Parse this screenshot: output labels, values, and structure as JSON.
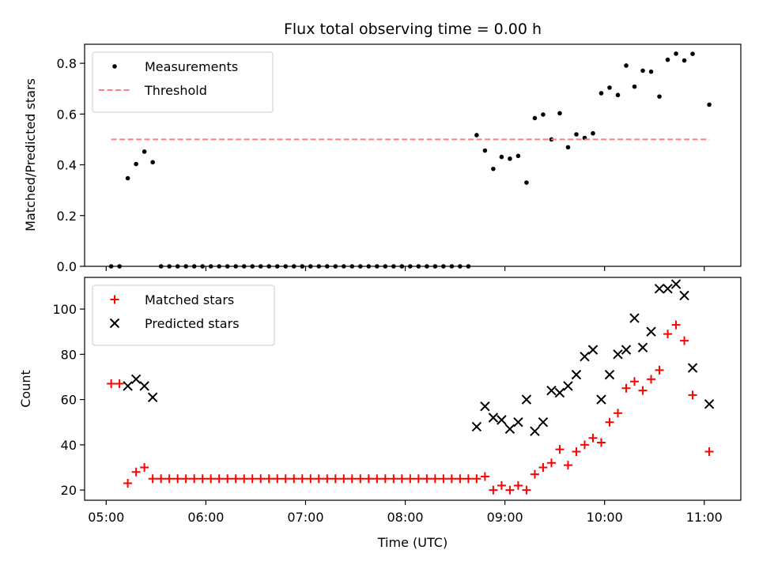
{
  "chart_data": [
    {
      "type": "scatter",
      "title": "Flux total observing time = 0.00 h",
      "xlabel": "",
      "ylabel": "Matched/Predicted stars",
      "xlim": [
        "04:47",
        "11:22"
      ],
      "ylim": [
        0,
        0.875
      ],
      "yticks": [
        0.0,
        0.2,
        0.4,
        0.6,
        0.8
      ],
      "xticks": [
        "05:00",
        "06:00",
        "07:00",
        "08:00",
        "09:00",
        "10:00",
        "11:00"
      ],
      "legend": {
        "position": "top-left"
      },
      "series": [
        {
          "name": "Measurements",
          "style": "dot",
          "color": "#000000",
          "points": [
            [
              "05:03",
              0.0
            ],
            [
              "05:08",
              0.0
            ],
            [
              "05:13",
              0.347
            ],
            [
              "05:18",
              0.403
            ],
            [
              "05:23",
              0.452
            ],
            [
              "05:28",
              0.41
            ],
            [
              "05:33",
              0.0
            ],
            [
              "05:38",
              0.0
            ],
            [
              "05:43",
              0.0
            ],
            [
              "05:48",
              0.0
            ],
            [
              "05:53",
              0.0
            ],
            [
              "05:58",
              0.0
            ],
            [
              "06:03",
              0.0
            ],
            [
              "06:08",
              0.0
            ],
            [
              "06:13",
              0.0
            ],
            [
              "06:18",
              0.0
            ],
            [
              "06:23",
              0.0
            ],
            [
              "06:28",
              0.0
            ],
            [
              "06:33",
              0.0
            ],
            [
              "06:38",
              0.0
            ],
            [
              "06:43",
              0.0
            ],
            [
              "06:48",
              0.0
            ],
            [
              "06:53",
              0.0
            ],
            [
              "06:58",
              0.0
            ],
            [
              "07:03",
              0.0
            ],
            [
              "07:08",
              0.0
            ],
            [
              "07:13",
              0.0
            ],
            [
              "07:18",
              0.0
            ],
            [
              "07:23",
              0.0
            ],
            [
              "07:28",
              0.0
            ],
            [
              "07:33",
              0.0
            ],
            [
              "07:38",
              0.0
            ],
            [
              "07:43",
              0.0
            ],
            [
              "07:48",
              0.0
            ],
            [
              "07:53",
              0.0
            ],
            [
              "07:58",
              0.0
            ],
            [
              "08:03",
              0.0
            ],
            [
              "08:08",
              0.0
            ],
            [
              "08:13",
              0.0
            ],
            [
              "08:18",
              0.0
            ],
            [
              "08:23",
              0.0
            ],
            [
              "08:28",
              0.0
            ],
            [
              "08:33",
              0.0
            ],
            [
              "08:38",
              0.0
            ],
            [
              "08:43",
              0.517
            ],
            [
              "08:48",
              0.456
            ],
            [
              "08:53",
              0.384
            ],
            [
              "08:58",
              0.431
            ],
            [
              "09:03",
              0.424
            ],
            [
              "09:08",
              0.435
            ],
            [
              "09:13",
              0.33
            ],
            [
              "09:18",
              0.584
            ],
            [
              "09:23",
              0.598
            ],
            [
              "09:28",
              0.5
            ],
            [
              "09:33",
              0.603
            ],
            [
              "09:38",
              0.469
            ],
            [
              "09:43",
              0.52
            ],
            [
              "09:48",
              0.506
            ],
            [
              "09:53",
              0.524
            ],
            [
              "09:58",
              0.682
            ],
            [
              "10:03",
              0.704
            ],
            [
              "10:08",
              0.675
            ],
            [
              "10:13",
              0.791
            ],
            [
              "10:18",
              0.708
            ],
            [
              "10:23",
              0.771
            ],
            [
              "10:28",
              0.767
            ],
            [
              "10:33",
              0.669
            ],
            [
              "10:38",
              0.814
            ],
            [
              "10:43",
              0.838
            ],
            [
              "10:48",
              0.811
            ],
            [
              "10:53",
              0.837
            ],
            [
              "11:03",
              0.637
            ]
          ]
        },
        {
          "name": "Threshold",
          "style": "dashed-line",
          "color": "#ff7f7f",
          "points": [
            [
              "05:03",
              0.5
            ],
            [
              "11:03",
              0.5
            ]
          ]
        }
      ]
    },
    {
      "type": "scatter",
      "title": "",
      "xlabel": "Time (UTC)",
      "ylabel": "Count",
      "xlim": [
        "04:47",
        "11:22"
      ],
      "ylim": [
        15.5,
        114
      ],
      "yticks": [
        20,
        40,
        60,
        80,
        100
      ],
      "xticks": [
        "05:00",
        "06:00",
        "07:00",
        "08:00",
        "09:00",
        "10:00",
        "11:00"
      ],
      "legend": {
        "position": "top-left"
      },
      "series": [
        {
          "name": "Matched stars",
          "style": "plus",
          "color": "#ff0000",
          "points": [
            [
              "05:03",
              67
            ],
            [
              "05:08",
              67
            ],
            [
              "05:13",
              23
            ],
            [
              "05:18",
              28
            ],
            [
              "05:23",
              30
            ],
            [
              "05:28",
              25
            ],
            [
              "05:33",
              25
            ],
            [
              "05:38",
              25
            ],
            [
              "05:43",
              25
            ],
            [
              "05:48",
              25
            ],
            [
              "05:53",
              25
            ],
            [
              "05:58",
              25
            ],
            [
              "06:03",
              25
            ],
            [
              "06:08",
              25
            ],
            [
              "06:13",
              25
            ],
            [
              "06:18",
              25
            ],
            [
              "06:23",
              25
            ],
            [
              "06:28",
              25
            ],
            [
              "06:33",
              25
            ],
            [
              "06:38",
              25
            ],
            [
              "06:43",
              25
            ],
            [
              "06:48",
              25
            ],
            [
              "06:53",
              25
            ],
            [
              "06:58",
              25
            ],
            [
              "07:03",
              25
            ],
            [
              "07:08",
              25
            ],
            [
              "07:13",
              25
            ],
            [
              "07:18",
              25
            ],
            [
              "07:23",
              25
            ],
            [
              "07:28",
              25
            ],
            [
              "07:33",
              25
            ],
            [
              "07:38",
              25
            ],
            [
              "07:43",
              25
            ],
            [
              "07:48",
              25
            ],
            [
              "07:53",
              25
            ],
            [
              "07:58",
              25
            ],
            [
              "08:03",
              25
            ],
            [
              "08:08",
              25
            ],
            [
              "08:13",
              25
            ],
            [
              "08:18",
              25
            ],
            [
              "08:23",
              25
            ],
            [
              "08:28",
              25
            ],
            [
              "08:33",
              25
            ],
            [
              "08:38",
              25
            ],
            [
              "08:43",
              25
            ],
            [
              "08:48",
              26
            ],
            [
              "08:53",
              20
            ],
            [
              "08:58",
              22
            ],
            [
              "09:03",
              20
            ],
            [
              "09:08",
              22
            ],
            [
              "09:13",
              20
            ],
            [
              "09:18",
              27
            ],
            [
              "09:23",
              30
            ],
            [
              "09:28",
              32
            ],
            [
              "09:33",
              38
            ],
            [
              "09:38",
              31
            ],
            [
              "09:43",
              37
            ],
            [
              "09:48",
              40
            ],
            [
              "09:53",
              43
            ],
            [
              "09:58",
              41
            ],
            [
              "10:03",
              50
            ],
            [
              "10:08",
              54
            ],
            [
              "10:13",
              65
            ],
            [
              "10:18",
              68
            ],
            [
              "10:23",
              64
            ],
            [
              "10:28",
              69
            ],
            [
              "10:33",
              73
            ],
            [
              "10:38",
              89
            ],
            [
              "10:43",
              93
            ],
            [
              "10:48",
              86
            ],
            [
              "10:53",
              62
            ],
            [
              "11:03",
              37
            ]
          ]
        },
        {
          "name": "Predicted stars",
          "style": "x",
          "color": "#000000",
          "points": [
            [
              "05:13",
              66
            ],
            [
              "05:18",
              69
            ],
            [
              "05:23",
              66
            ],
            [
              "05:28",
              61
            ],
            [
              "08:43",
              48
            ],
            [
              "08:48",
              57
            ],
            [
              "08:53",
              52
            ],
            [
              "08:58",
              51
            ],
            [
              "09:03",
              47
            ],
            [
              "09:08",
              50
            ],
            [
              "09:13",
              60
            ],
            [
              "09:18",
              46
            ],
            [
              "09:23",
              50
            ],
            [
              "09:28",
              64
            ],
            [
              "09:33",
              63
            ],
            [
              "09:38",
              66
            ],
            [
              "09:43",
              71
            ],
            [
              "09:48",
              79
            ],
            [
              "09:53",
              82
            ],
            [
              "09:58",
              60
            ],
            [
              "10:03",
              71
            ],
            [
              "10:08",
              80
            ],
            [
              "10:13",
              82
            ],
            [
              "10:18",
              96
            ],
            [
              "10:23",
              83
            ],
            [
              "10:28",
              90
            ],
            [
              "10:33",
              109
            ],
            [
              "10:38",
              109
            ],
            [
              "10:43",
              111
            ],
            [
              "10:48",
              106
            ],
            [
              "10:53",
              74
            ],
            [
              "11:03",
              58
            ]
          ]
        }
      ]
    }
  ]
}
